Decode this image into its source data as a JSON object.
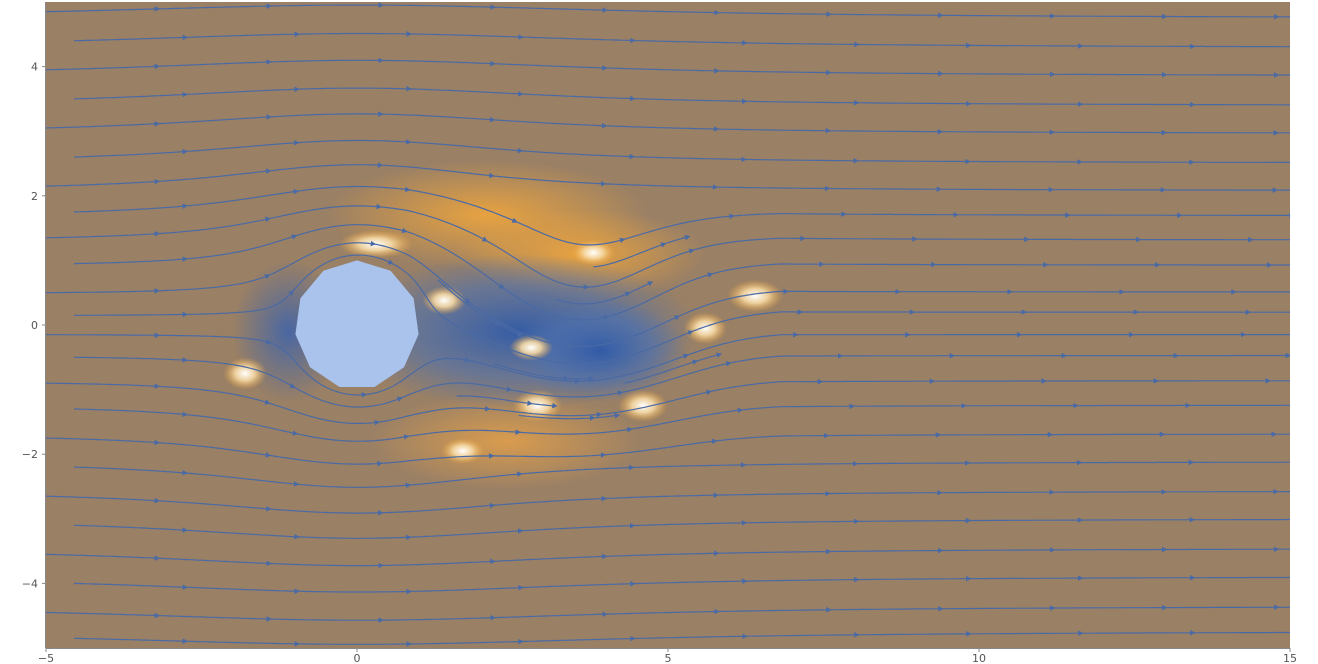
{
  "chart_data": {
    "type": "stream-density",
    "title": "",
    "xlabel": "",
    "ylabel": "",
    "xlim": [
      -5,
      15
    ],
    "ylim": [
      -5,
      5
    ],
    "x_ticks": [
      {
        "value": -5,
        "label": "−5"
      },
      {
        "value": 0,
        "label": "0"
      },
      {
        "value": 5,
        "label": "5"
      },
      {
        "value": 10,
        "label": "10"
      },
      {
        "value": 15,
        "label": "15"
      }
    ],
    "y_ticks": [
      {
        "value": -4,
        "label": "−4"
      },
      {
        "value": -2,
        "label": "−2"
      },
      {
        "value": 0,
        "label": "0"
      },
      {
        "value": 2,
        "label": "2"
      },
      {
        "value": 4,
        "label": "4"
      }
    ],
    "obstacle": {
      "shape": "hendecagon",
      "center": [
        0,
        0
      ],
      "radius": 1,
      "color": "#a9c3ec"
    },
    "background_color": "#9a8065",
    "streamline_color": "#4a6aa5",
    "high_speed_color": "#f0a63c",
    "low_speed_color": "#3a62ad",
    "flow_direction": "left-to-right",
    "wake_region": {
      "x": [
        0.5,
        6
      ],
      "y": [
        -2,
        1.8
      ]
    }
  }
}
